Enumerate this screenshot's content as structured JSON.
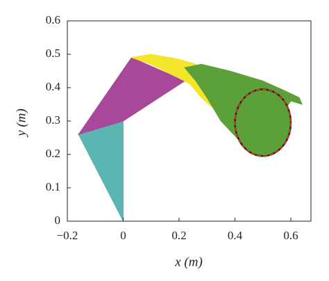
{
  "chart_data": {
    "type": "workspace",
    "x_label": "x (m)",
    "y_label": "y (m)",
    "xlim": [
      -0.2,
      0.672
    ],
    "ylim": [
      0,
      0.6
    ],
    "xticks": [
      {
        "value": -0.2,
        "label": "−0.2"
      },
      0,
      0.2,
      0.4,
      0.6
    ],
    "yticks": [
      0,
      0.1,
      0.2,
      0.3,
      0.4,
      0.5,
      0.6
    ],
    "series": [
      {
        "color": "#5bb5b0",
        "x": [
          -0.16,
          0,
          0
        ],
        "values": [
          0.26,
          0.3,
          0
        ]
      },
      {
        "color": "#a8489a",
        "x": [
          -0.16,
          0,
          0.22,
          0.03
        ],
        "values": [
          0.26,
          0.3,
          0.42,
          0.49
        ]
      },
      {
        "color": "#f2e52a",
        "x": [
          0.03,
          0.1,
          0.2,
          0.26,
          0.3,
          0.34,
          0.38,
          0.39,
          0.36,
          0.32,
          0.28,
          0.24,
          0.22,
          0.1
        ],
        "values": [
          0.49,
          0.5,
          0.485,
          0.47,
          0.45,
          0.41,
          0.38,
          0.35,
          0.33,
          0.34,
          0.37,
          0.41,
          0.42,
          0.47
        ]
      },
      {
        "color": "#5ca03a",
        "x": [
          0.22,
          0.28,
          0.38,
          0.5,
          0.58,
          0.63,
          0.64,
          0.6,
          0.55,
          0.52,
          0.48,
          0.44,
          0.35,
          0.3,
          0.26
        ],
        "values": [
          0.46,
          0.47,
          0.45,
          0.42,
          0.39,
          0.37,
          0.35,
          0.36,
          0.3,
          0.22,
          0.2,
          0.22,
          0.3,
          0.37,
          0.42
        ]
      }
    ],
    "circle": {
      "center": [
        0.5,
        0.295
      ],
      "radius": 0.1,
      "color": "#5ca03a",
      "edge_color": "#d23a1e"
    }
  }
}
